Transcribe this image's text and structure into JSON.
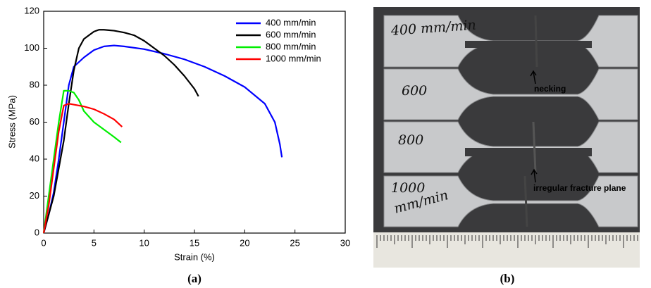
{
  "chart_data": {
    "type": "line",
    "xlabel": "Strain (%)",
    "ylabel": "Stress (MPa)",
    "xlim": [
      0,
      30
    ],
    "xticks": [
      0,
      5,
      10,
      15,
      20,
      25,
      30
    ],
    "ylim": [
      0,
      120
    ],
    "yticks": [
      0,
      20,
      40,
      60,
      80,
      100,
      120
    ],
    "legend": "upper right",
    "series": [
      {
        "name": "400 mm/min",
        "color": "#0000ff",
        "x": [
          0,
          0.5,
          1,
          1.5,
          2,
          2.5,
          3,
          4,
          5,
          6,
          7,
          8,
          10,
          12,
          14,
          16,
          18,
          20,
          22,
          23,
          23.5,
          23.7
        ],
        "values": [
          0,
          10,
          22,
          40,
          60,
          80,
          90,
          95,
          99,
          101,
          101.5,
          101,
          99.5,
          97,
          94,
          90,
          85,
          79,
          70,
          60,
          48,
          41
        ]
      },
      {
        "name": "600 mm/min",
        "color": "#000000",
        "x": [
          0,
          1,
          2,
          2.5,
          3,
          3.5,
          4,
          5,
          5.5,
          6,
          7,
          8,
          9,
          10,
          11,
          12,
          13,
          14,
          15,
          15.4
        ],
        "values": [
          0,
          20,
          50,
          70,
          88,
          100,
          105,
          109,
          110,
          110,
          109.5,
          108.5,
          107,
          104,
          100,
          96,
          91,
          85,
          78,
          74
        ]
      },
      {
        "name": "800 mm/min",
        "color": "#00ee00",
        "x": [
          0,
          0.5,
          1,
          1.5,
          2,
          2.5,
          3,
          3.5,
          4,
          5,
          6,
          7,
          7.7
        ],
        "values": [
          0,
          20,
          40,
          60,
          77,
          77,
          76,
          72,
          66,
          60,
          56,
          52,
          49
        ]
      },
      {
        "name": "1000 mm/min",
        "color": "#ff0000",
        "x": [
          0,
          0.5,
          1,
          1.5,
          2,
          2.5,
          3,
          4,
          5,
          6,
          7,
          7.8
        ],
        "values": [
          0,
          15,
          35,
          55,
          69,
          70,
          69.5,
          68.5,
          67,
          64.5,
          61.5,
          57.5
        ]
      }
    ]
  },
  "panel_labels": [
    "(a)",
    "(b)"
  ],
  "photo": {
    "specimen_labels": [
      "400 mm/min",
      "600",
      "800",
      "1000",
      "mm/min"
    ],
    "annotations": [
      "necking",
      "irregular fracture plane"
    ]
  }
}
